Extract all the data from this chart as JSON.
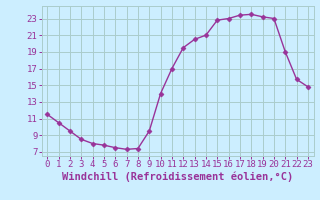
{
  "x": [
    0,
    1,
    2,
    3,
    4,
    5,
    6,
    7,
    8,
    9,
    10,
    11,
    12,
    13,
    14,
    15,
    16,
    17,
    18,
    19,
    20,
    21,
    22,
    23
  ],
  "y": [
    11.5,
    10.5,
    9.5,
    8.5,
    8.0,
    7.8,
    7.5,
    7.3,
    7.4,
    9.5,
    14.0,
    17.0,
    19.5,
    20.5,
    21.0,
    22.8,
    23.0,
    23.4,
    23.5,
    23.2,
    23.0,
    19.0,
    15.7,
    14.8
  ],
  "line_color": "#993399",
  "marker": "D",
  "marker_size": 2.5,
  "bg_color": "#cceeff",
  "grid_color": "#aacccc",
  "xlabel": "Windchill (Refroidissement éolien,°C)",
  "ylabel_ticks": [
    7,
    9,
    11,
    13,
    15,
    17,
    19,
    21,
    23
  ],
  "xlim": [
    -0.5,
    23.5
  ],
  "ylim": [
    6.5,
    24.5
  ],
  "xtick_labels": [
    "0",
    "1",
    "2",
    "3",
    "4",
    "5",
    "6",
    "7",
    "8",
    "9",
    "10",
    "11",
    "12",
    "13",
    "14",
    "15",
    "16",
    "17",
    "18",
    "19",
    "20",
    "21",
    "22",
    "23"
  ],
  "tick_fontsize": 6.5,
  "xlabel_fontsize": 7.5
}
